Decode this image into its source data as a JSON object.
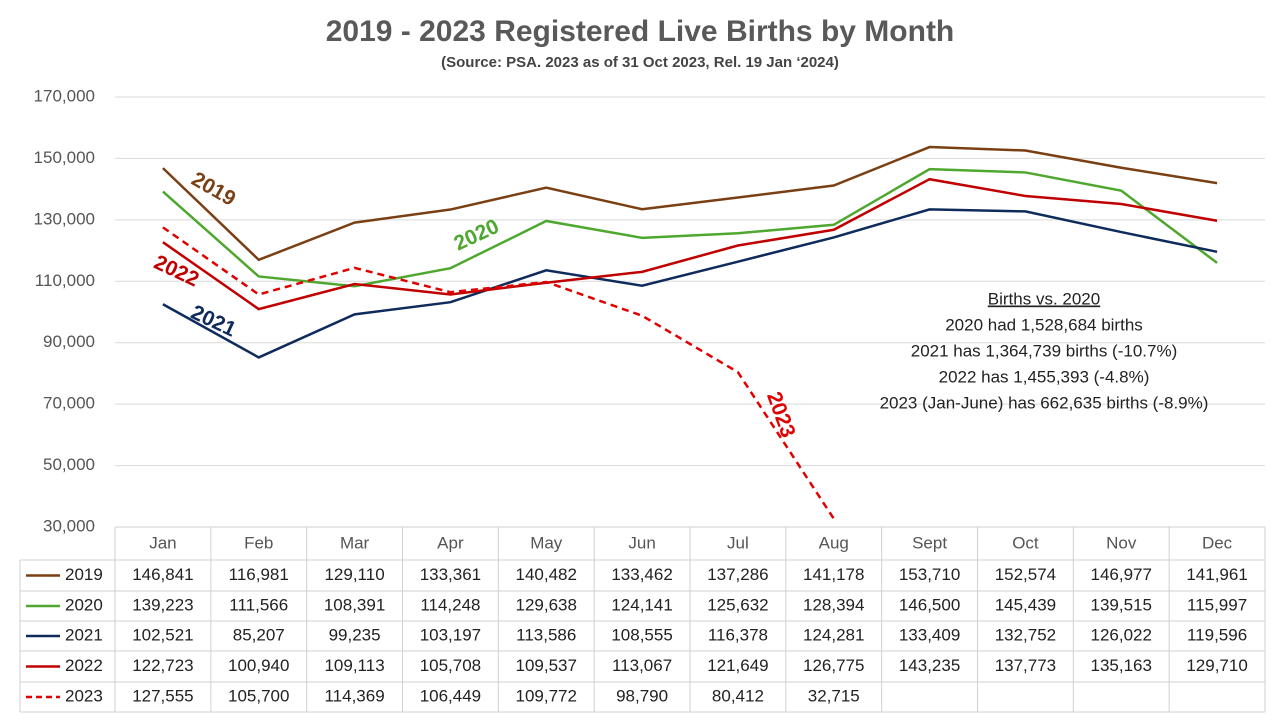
{
  "chart_data": {
    "type": "line",
    "title": "2019 - 2023 Registered Live Births by Month",
    "subtitle": "(Source: PSA.  2023 as of 31 Oct 2023, Rel. 19 Jan ‘2024)",
    "categories": [
      "Jan",
      "Feb",
      "Mar",
      "Apr",
      "May",
      "Jun",
      "Jul",
      "Aug",
      "Sept",
      "Oct",
      "Nov",
      "Dec"
    ],
    "ylim": [
      30000,
      170000
    ],
    "yticks": [
      {
        "value": 30000,
        "label": "30,000"
      },
      {
        "value": 50000,
        "label": "50,000"
      },
      {
        "value": 70000,
        "label": "70,000"
      },
      {
        "value": 90000,
        "label": "90,000"
      },
      {
        "value": 110000,
        "label": "110,000"
      },
      {
        "value": 130000,
        "label": "130,000"
      },
      {
        "value": 150000,
        "label": "150,000"
      },
      {
        "value": 170000,
        "label": "170,000"
      }
    ],
    "grid": true,
    "series": [
      {
        "name": "2019",
        "color": "#7b3f14",
        "dashed": false,
        "values": [
          146841,
          116981,
          129110,
          133361,
          140482,
          133462,
          137286,
          141178,
          153710,
          152574,
          146977,
          141961
        ],
        "value_labels": [
          "146,841",
          "116,981",
          "129,110",
          "133,361",
          "140,482",
          "133,462",
          "137,286",
          "141,178",
          "153,710",
          "152,574",
          "146,977",
          "141,961"
        ]
      },
      {
        "name": "2020",
        "color": "#4ea72e",
        "dashed": false,
        "values": [
          139223,
          111566,
          108391,
          114248,
          129638,
          124141,
          125632,
          128394,
          146500,
          145439,
          139515,
          115997
        ],
        "value_labels": [
          "139,223",
          "111,566",
          "108,391",
          "114,248",
          "129,638",
          "124,141",
          "125,632",
          "128,394",
          "146,500",
          "145,439",
          "139,515",
          "115,997"
        ]
      },
      {
        "name": "2021",
        "color": "#0e2b5c",
        "dashed": false,
        "values": [
          102521,
          85207,
          99235,
          103197,
          113586,
          108555,
          116378,
          124281,
          133409,
          132752,
          126022,
          119596
        ],
        "value_labels": [
          "102,521",
          "85,207",
          "99,235",
          "103,197",
          "113,586",
          "108,555",
          "116,378",
          "124,281",
          "133,409",
          "132,752",
          "126,022",
          "119,596"
        ]
      },
      {
        "name": "2022",
        "color": "#c00000",
        "dashed": false,
        "values": [
          122723,
          100940,
          109113,
          105708,
          109537,
          113067,
          121649,
          126775,
          143235,
          137773,
          135163,
          129710
        ],
        "value_labels": [
          "122,723",
          "100,940",
          "109,113",
          "105,708",
          "109,537",
          "113,067",
          "121,649",
          "126,775",
          "143,235",
          "137,773",
          "135,163",
          "129,710"
        ]
      },
      {
        "name": "2023",
        "color": "#e00000",
        "dashed": true,
        "values": [
          127555,
          105700,
          114369,
          106449,
          109772,
          98790,
          80412,
          32715,
          null,
          null,
          null,
          null
        ],
        "value_labels": [
          "127,555",
          "105,700",
          "114,369",
          "106,449",
          "109,772",
          "98,790",
          "80,412",
          "32,715",
          null,
          null,
          null,
          null
        ]
      }
    ],
    "annotation": {
      "title": "Births vs. 2020",
      "lines": [
        "2020 had 1,528,684  births",
        "2021 has 1,364,739 births (-10.7%)",
        "2022 has 1,455,393 (-4.8%)",
        "2023 (Jan-June) has 662,635 births (-8.9%)"
      ]
    }
  }
}
